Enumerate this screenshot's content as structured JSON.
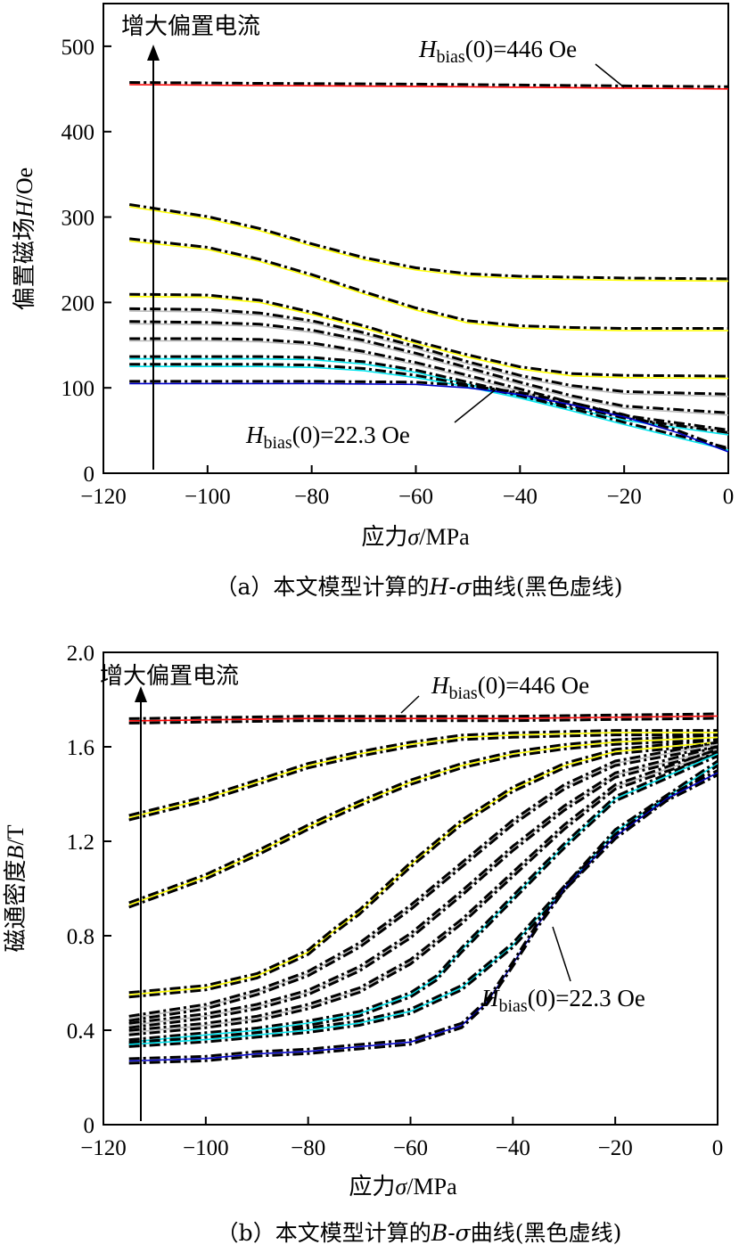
{
  "chart_data": [
    {
      "type": "line",
      "panel": "a",
      "caption": "（a）本文模型计算的H-σ曲线(黑色虚线)",
      "xlabel": "应力σ/MPa",
      "ylabel": "偏置磁场H/Oe",
      "xlim": [
        -120,
        0
      ],
      "ylim": [
        0,
        550
      ],
      "xticks": [
        "−120",
        "−100",
        "−80",
        "−60",
        "−40",
        "−20",
        "0"
      ],
      "yticks": [
        "0",
        "100",
        "200",
        "300",
        "400",
        "500"
      ],
      "arrow_label": "增大偏置电流",
      "annotations": {
        "top": "Hbias(0)=446 Oe",
        "bottom": "Hbias(0)=22.3 Oe"
      },
      "series_colors": [
        "#ff0000",
        "#ffff00",
        "#ffff00",
        "#ffff00",
        "#bbbbbb",
        "#bbbbbb",
        "#bbbbbb",
        "#00e5ee",
        "#00e5ee",
        "#0000cc"
      ],
      "series": [
        {
          "x": [
            -115,
            -90,
            -60,
            -40,
            -20,
            0
          ],
          "y": [
            455,
            454,
            453,
            452,
            451,
            450
          ]
        },
        {
          "x": [
            -115,
            -100,
            -90,
            -80,
            -70,
            -60,
            -50,
            -40,
            -20,
            0
          ],
          "y": [
            312,
            298,
            284,
            266,
            250,
            238,
            231,
            228,
            226,
            225
          ]
        },
        {
          "x": [
            -115,
            -100,
            -90,
            -80,
            -70,
            -60,
            -50,
            -40,
            -30,
            -20,
            0
          ],
          "y": [
            272,
            262,
            248,
            230,
            210,
            191,
            176,
            170,
            168,
            167,
            167
          ]
        },
        {
          "x": [
            -115,
            -100,
            -90,
            -80,
            -70,
            -60,
            -50,
            -40,
            -30,
            -20,
            0
          ],
          "y": [
            207,
            206,
            200,
            186,
            170,
            152,
            136,
            122,
            114,
            112,
            111
          ]
        },
        {
          "x": [
            -115,
            -100,
            -90,
            -80,
            -70,
            -60,
            -50,
            -40,
            -30,
            -20,
            0
          ],
          "y": [
            190,
            189,
            185,
            176,
            162,
            146,
            128,
            112,
            100,
            93,
            90
          ]
        },
        {
          "x": [
            -115,
            -100,
            -90,
            -80,
            -70,
            -60,
            -50,
            -40,
            -30,
            -20,
            0
          ],
          "y": [
            175,
            174,
            172,
            165,
            153,
            138,
            121,
            104,
            88,
            76,
            68
          ]
        },
        {
          "x": [
            -115,
            -100,
            -90,
            -80,
            -70,
            -60,
            -50,
            -40,
            -30,
            -20,
            0
          ],
          "y": [
            155,
            155,
            154,
            150,
            140,
            127,
            112,
            96,
            80,
            65,
            48
          ]
        },
        {
          "x": [
            -115,
            -100,
            -90,
            -80,
            -70,
            -60,
            -50,
            -40,
            -30,
            -20,
            0
          ],
          "y": [
            134,
            134,
            134,
            133,
            128,
            118,
            104,
            90,
            76,
            62,
            45
          ]
        },
        {
          "x": [
            -115,
            -100,
            -90,
            -80,
            -70,
            -60,
            -50,
            -40,
            -30,
            -20,
            0
          ],
          "y": [
            125,
            125,
            125,
            124,
            120,
            112,
            101,
            88,
            73,
            57,
            27
          ]
        },
        {
          "x": [
            -115,
            -100,
            -80,
            -60,
            -50,
            -40,
            -30,
            -20,
            -10,
            0
          ],
          "y": [
            105,
            105,
            105,
            104,
            100,
            92,
            80,
            66,
            48,
            25
          ]
        }
      ]
    },
    {
      "type": "line",
      "panel": "b",
      "caption": "（b）本文模型计算的B-σ曲线(黑色虚线)",
      "xlabel": "应力σ/MPa",
      "ylabel": "磁通密度B/T",
      "xlim": [
        -120,
        0
      ],
      "ylim": [
        0,
        2.0
      ],
      "xticks": [
        "−120",
        "−100",
        "−80",
        "−60",
        "−40",
        "−20",
        "0"
      ],
      "yticks": [
        "0",
        "0.4",
        "0.8",
        "1.2",
        "1.6",
        "2.0"
      ],
      "arrow_label": "增大偏置电流",
      "annotations": {
        "top": "Hbias(0)=446 Oe",
        "bottom": "Hbias(0)=22.3 Oe"
      },
      "series_colors": [
        "#ff0000",
        "#ffff00",
        "#ffff00",
        "#ffff00",
        "#bbbbbb",
        "#bbbbbb",
        "#bbbbbb",
        "#00e5ee",
        "#00e5ee",
        "#0000cc"
      ],
      "series": [
        {
          "x": [
            -115,
            -80,
            -40,
            0
          ],
          "y": [
            1.71,
            1.72,
            1.72,
            1.73
          ]
        },
        {
          "x": [
            -115,
            -100,
            -90,
            -80,
            -70,
            -60,
            -50,
            -40,
            -20,
            0
          ],
          "y": [
            1.3,
            1.38,
            1.45,
            1.52,
            1.57,
            1.61,
            1.64,
            1.65,
            1.66,
            1.66
          ]
        },
        {
          "x": [
            -115,
            -100,
            -90,
            -80,
            -70,
            -60,
            -50,
            -40,
            -30,
            -20,
            0
          ],
          "y": [
            0.93,
            1.05,
            1.15,
            1.26,
            1.36,
            1.45,
            1.52,
            1.57,
            1.6,
            1.62,
            1.64
          ]
        },
        {
          "x": [
            -115,
            -100,
            -90,
            -80,
            -75,
            -70,
            -60,
            -50,
            -40,
            -30,
            -20,
            0
          ],
          "y": [
            0.55,
            0.58,
            0.63,
            0.73,
            0.82,
            0.9,
            1.1,
            1.28,
            1.42,
            1.52,
            1.58,
            1.62
          ]
        },
        {
          "x": [
            -115,
            -100,
            -90,
            -80,
            -70,
            -60,
            -50,
            -40,
            -30,
            -20,
            0
          ],
          "y": [
            0.45,
            0.5,
            0.56,
            0.64,
            0.76,
            0.92,
            1.1,
            1.28,
            1.43,
            1.53,
            1.61
          ]
        },
        {
          "x": [
            -115,
            -100,
            -90,
            -80,
            -70,
            -60,
            -50,
            -40,
            -30,
            -20,
            0
          ],
          "y": [
            0.42,
            0.46,
            0.5,
            0.56,
            0.66,
            0.8,
            0.98,
            1.17,
            1.34,
            1.48,
            1.59
          ]
        },
        {
          "x": [
            -115,
            -100,
            -90,
            -80,
            -70,
            -60,
            -50,
            -40,
            -30,
            -20,
            0
          ],
          "y": [
            0.39,
            0.42,
            0.45,
            0.5,
            0.57,
            0.69,
            0.86,
            1.06,
            1.26,
            1.43,
            1.58
          ]
        },
        {
          "x": [
            -115,
            -100,
            -90,
            -80,
            -70,
            -60,
            -55,
            -50,
            -40,
            -30,
            -20,
            0
          ],
          "y": [
            0.35,
            0.38,
            0.4,
            0.43,
            0.47,
            0.55,
            0.62,
            0.74,
            0.96,
            1.18,
            1.38,
            1.57
          ]
        },
        {
          "x": [
            -115,
            -100,
            -90,
            -80,
            -70,
            -60,
            -50,
            -40,
            -30,
            -20,
            0
          ],
          "y": [
            0.34,
            0.36,
            0.38,
            0.4,
            0.43,
            0.48,
            0.58,
            0.76,
            1.0,
            1.24,
            1.53
          ]
        },
        {
          "x": [
            -115,
            -100,
            -90,
            -80,
            -70,
            -60,
            -50,
            -45,
            -40,
            -35,
            -30,
            -20,
            -10,
            0
          ],
          "y": [
            0.27,
            0.28,
            0.3,
            0.31,
            0.33,
            0.35,
            0.42,
            0.52,
            0.68,
            0.85,
            1.0,
            1.22,
            1.38,
            1.49
          ]
        }
      ]
    }
  ]
}
